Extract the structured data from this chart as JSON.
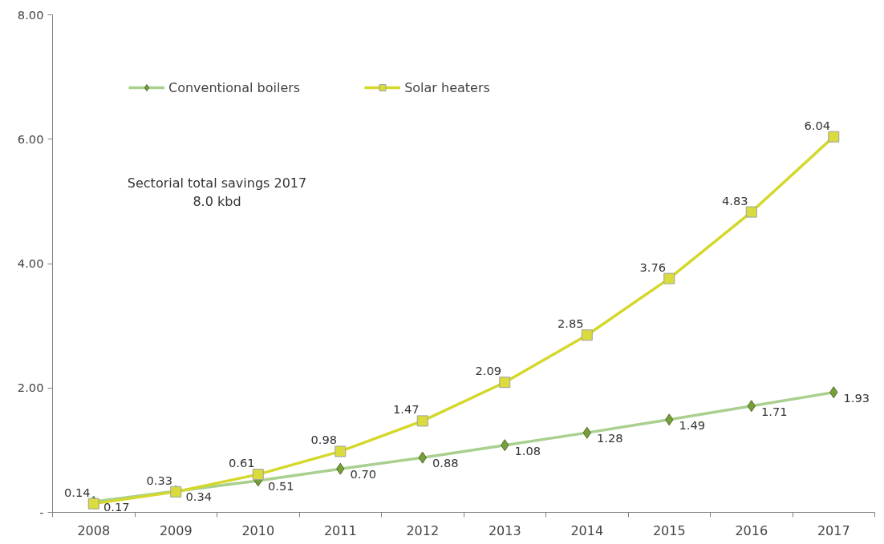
{
  "chart_data": {
    "type": "line",
    "categories": [
      "2008",
      "2009",
      "2010",
      "2011",
      "2012",
      "2013",
      "2014",
      "2015",
      "2016",
      "2017"
    ],
    "series": [
      {
        "name": "Conventional boilers",
        "color": "#a9d08e",
        "marker": "diamond",
        "values": [
          0.17,
          0.34,
          0.51,
          0.7,
          0.88,
          1.08,
          1.28,
          1.49,
          1.71,
          1.93
        ],
        "value_labels": [
          "0.17",
          "0.34",
          "0.51",
          "0.70",
          "0.88",
          "1.08",
          "1.28",
          "1.49",
          "1.71",
          "1.93"
        ]
      },
      {
        "name": "Solar heaters",
        "color": "#d4d82a",
        "marker": "square",
        "values": [
          0.14,
          0.33,
          0.61,
          0.98,
          1.47,
          2.09,
          2.85,
          3.76,
          4.83,
          6.04
        ],
        "value_labels": [
          "0.14",
          "0.33",
          "0.61",
          "0.98",
          "1.47",
          "2.09",
          "2.85",
          "3.76",
          "4.83",
          "6.04"
        ]
      }
    ],
    "ylim": [
      0,
      8
    ],
    "yticks": [
      {
        "value": 0,
        "label": "-"
      },
      {
        "value": 2,
        "label": "2.00"
      },
      {
        "value": 4,
        "label": "4.00"
      },
      {
        "value": 6,
        "label": "6.00"
      },
      {
        "value": 8,
        "label": "8.00"
      }
    ],
    "annotations": [
      "Sectorial total savings 2017\n8.0 kbd"
    ],
    "grid": false,
    "legend": "top left",
    "line_style": "solid"
  }
}
